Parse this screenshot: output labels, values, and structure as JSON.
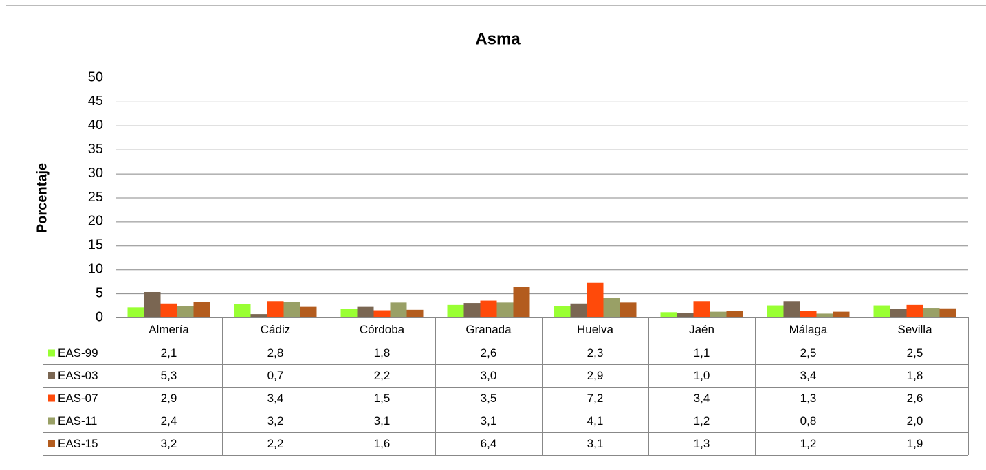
{
  "chart_data": {
    "type": "bar",
    "title": "Asma",
    "y_label": "Porcentaje",
    "categories": [
      "Almería",
      "Cádiz",
      "Córdoba",
      "Granada",
      "Huelva",
      "Jaén",
      "Málaga",
      "Sevilla"
    ],
    "series": [
      {
        "name": "EAS-99",
        "color": "#99ff33",
        "values": [
          2.1,
          2.8,
          1.8,
          2.6,
          2.3,
          1.1,
          2.5,
          2.5
        ],
        "value_labels": [
          "2,1",
          "2,8",
          "1,8",
          "2,6",
          "2,3",
          "1,1",
          "2,5",
          "2,5"
        ]
      },
      {
        "name": "EAS-03",
        "color": "#7a6652",
        "values": [
          5.3,
          0.7,
          2.2,
          3.0,
          2.9,
          1.0,
          3.4,
          1.8
        ],
        "value_labels": [
          "5,3",
          "0,7",
          "2,2",
          "3,0",
          "2,9",
          "1,0",
          "3,4",
          "1,8"
        ]
      },
      {
        "name": "EAS-07",
        "color": "#ff4a0a",
        "values": [
          2.9,
          3.4,
          1.5,
          3.5,
          7.2,
          3.4,
          1.3,
          2.6
        ],
        "value_labels": [
          "2,9",
          "3,4",
          "1,5",
          "3,5",
          "7,2",
          "3,4",
          "1,3",
          "2,6"
        ]
      },
      {
        "name": "EAS-11",
        "color": "#99a066",
        "values": [
          2.4,
          3.2,
          3.1,
          3.1,
          4.1,
          1.2,
          0.8,
          2.0
        ],
        "value_labels": [
          "2,4",
          "3,2",
          "3,1",
          "3,1",
          "4,1",
          "1,2",
          "0,8",
          "2,0"
        ]
      },
      {
        "name": "EAS-15",
        "color": "#b35c1e",
        "values": [
          3.2,
          2.2,
          1.6,
          6.4,
          3.1,
          1.3,
          1.2,
          1.9
        ],
        "value_labels": [
          "3,2",
          "2,2",
          "1,6",
          "6,4",
          "3,1",
          "1,3",
          "1,2",
          "1,9"
        ]
      }
    ],
    "ylim": [
      0,
      50
    ],
    "yticks": [
      0,
      5,
      10,
      15,
      20,
      25,
      30,
      35,
      40,
      45,
      50
    ],
    "grid": true
  }
}
